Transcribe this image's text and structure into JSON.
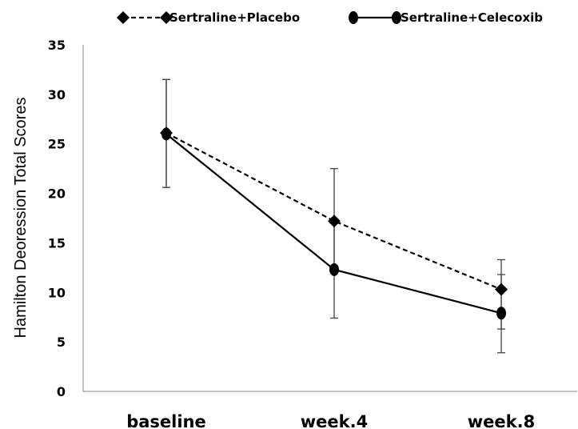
{
  "chart_data": {
    "type": "line",
    "categories": [
      "baseline",
      "week.4",
      "week.8"
    ],
    "ylabel": "Hamilton Deoression Total Scores",
    "ylim": [
      0,
      35
    ],
    "yticks": [
      "0",
      "5",
      "10",
      "15",
      "20",
      "25",
      "30",
      "35"
    ],
    "grid": false,
    "legend_position": "top",
    "series": [
      {
        "name": "Sertraline+Placebo",
        "marker": "diamond",
        "line_style": "dashed",
        "color": "#000000",
        "values": [
          26.1,
          17.2,
          10.3
        ],
        "error_low": [
          20.6,
          12.0,
          6.3
        ],
        "error_high": [
          31.5,
          22.5,
          13.3
        ]
      },
      {
        "name": "Sertraline+Celecoxib",
        "marker": "circle",
        "line_style": "solid",
        "color": "#000000",
        "values": [
          26.0,
          12.3,
          7.9
        ],
        "error_low": [
          20.6,
          7.4,
          3.9
        ],
        "error_high": [
          31.5,
          17.2,
          11.8
        ]
      }
    ]
  }
}
